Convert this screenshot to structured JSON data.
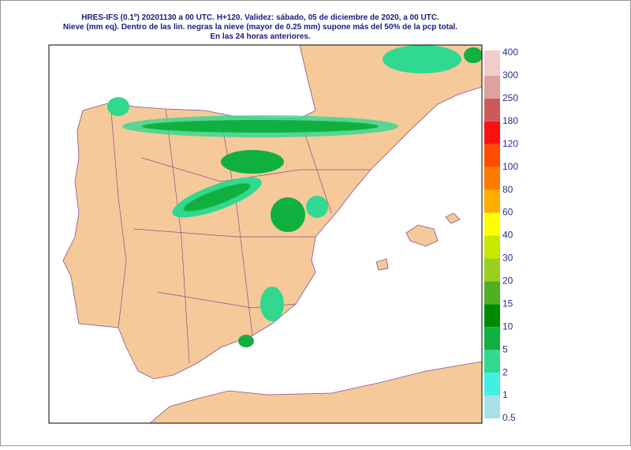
{
  "header": {
    "lines": [
      "HRES-IFS (0.1º) 20201130 a 00 UTC.  H+120. Validez: sábado, 05 de diciembre de 2020,  a  00 UTC.",
      "Nieve (mm eq). Dentro de las lin. negras la nieve (mayor de 0.25 mm) supone más del 50% de la pcp total.",
      "En las 24 horas anteriores."
    ]
  },
  "legend": {
    "labels": [
      "400",
      "300",
      "250",
      "180",
      "120",
      "100",
      "80",
      "60",
      "40",
      "30",
      "20",
      "15",
      "10",
      "5",
      "2",
      "1",
      "0.5"
    ],
    "colors": [
      "#f2cccc",
      "#e0a0a0",
      "#cc5a5a",
      "#ff1010",
      "#ff4a00",
      "#ff7a00",
      "#ffae00",
      "#ffff00",
      "#c8e800",
      "#98d020",
      "#50b020",
      "#008a00",
      "#10b040",
      "#30d890",
      "#40f0e0",
      "#a8e0e8"
    ]
  }
}
